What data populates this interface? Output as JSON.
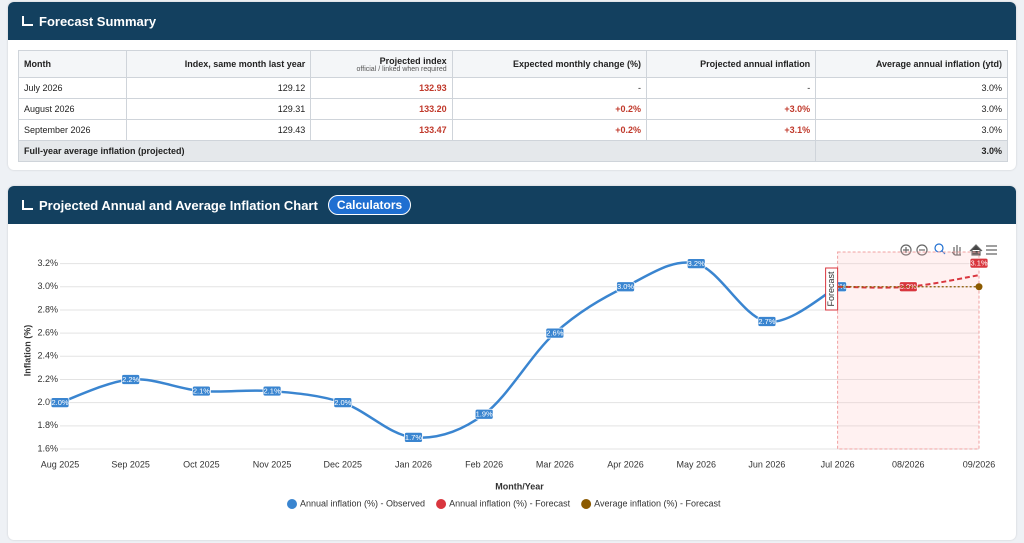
{
  "summary": {
    "title": "Forecast Summary",
    "columns": [
      "Month",
      "Index, same month last year",
      "Projected index",
      "Expected monthly change (%)",
      "Projected annual inflation",
      "Average annual inflation (ytd)"
    ],
    "column_note": "official / linked when required",
    "rows": [
      [
        "July 2026",
        "129.12",
        "132.93",
        "-",
        "-",
        "3.0%"
      ],
      [
        "August 2026",
        "129.31",
        "133.20",
        "+0.2%",
        "+3.0%",
        "3.0%"
      ],
      [
        "September 2026",
        "129.43",
        "133.47",
        "+0.2%",
        "+3.1%",
        "3.0%"
      ]
    ],
    "footer": [
      "Full-year average inflation (projected)",
      "3.0%"
    ]
  },
  "chart_panel": {
    "button": "Calculators"
  },
  "chart_data": {
    "type": "line",
    "title": "Projected Annual and Average Inflation Chart",
    "x_label": "Month/Year",
    "y_label": "Inflation (%)",
    "annotation": "Forecast",
    "categories": [
      "Aug 2025",
      "Sep 2025",
      "Oct 2025",
      "Nov 2025",
      "Dec 2025",
      "Jan 2026",
      "Feb 2026",
      "Mar 2026",
      "Apr 2026",
      "May 2026",
      "Jun 2026",
      "Jul 2026",
      "08/2026",
      "09/2026"
    ],
    "series": [
      {
        "name": "Annual inflation (%) - Observed",
        "color": "#3a85d0",
        "values": [
          2.0,
          2.2,
          2.1,
          2.1,
          2.0,
          1.7,
          1.9,
          2.6,
          3.0,
          3.2,
          2.7,
          3.0,
          null,
          null
        ],
        "value_labels": [
          "2.0%",
          "2.2%",
          "2.1%",
          "2.1%",
          "2.0%",
          "1.7%",
          "1.9%",
          "2.6%",
          "3.0%",
          "3.2%",
          "2.7%",
          "3.0%",
          null,
          null
        ]
      },
      {
        "name": "Annual inflation (%) - Forecast",
        "color": "#d9363e",
        "values": [
          null,
          null,
          null,
          null,
          null,
          null,
          null,
          null,
          null,
          null,
          null,
          3.0,
          3.0,
          3.1
        ],
        "value_labels": [
          null,
          null,
          null,
          null,
          null,
          null,
          null,
          null,
          null,
          null,
          null,
          null,
          "3.0%",
          "3.1%"
        ]
      },
      {
        "name": "Average inflation (%) - Forecast",
        "color": "#8b5a00",
        "values": [
          null,
          null,
          null,
          null,
          null,
          null,
          null,
          null,
          null,
          null,
          null,
          3.0,
          3.0,
          3.0
        ]
      }
    ],
    "ylim": [
      1.6,
      3.3
    ],
    "yticks": [
      {
        "value": 1.6,
        "label": "1.6%"
      },
      {
        "value": 1.8,
        "label": "1.8%"
      },
      {
        "value": 2.0,
        "label": "2.0%"
      },
      {
        "value": 2.2,
        "label": "2.2%"
      },
      {
        "value": 2.4,
        "label": "2.4%"
      },
      {
        "value": 2.6,
        "label": "2.6%"
      },
      {
        "value": 2.8,
        "label": "2.8%"
      },
      {
        "value": 3.0,
        "label": "3.0%"
      },
      {
        "value": 3.2,
        "label": "3.2%"
      }
    ],
    "grid": true,
    "legend": "bottom"
  }
}
